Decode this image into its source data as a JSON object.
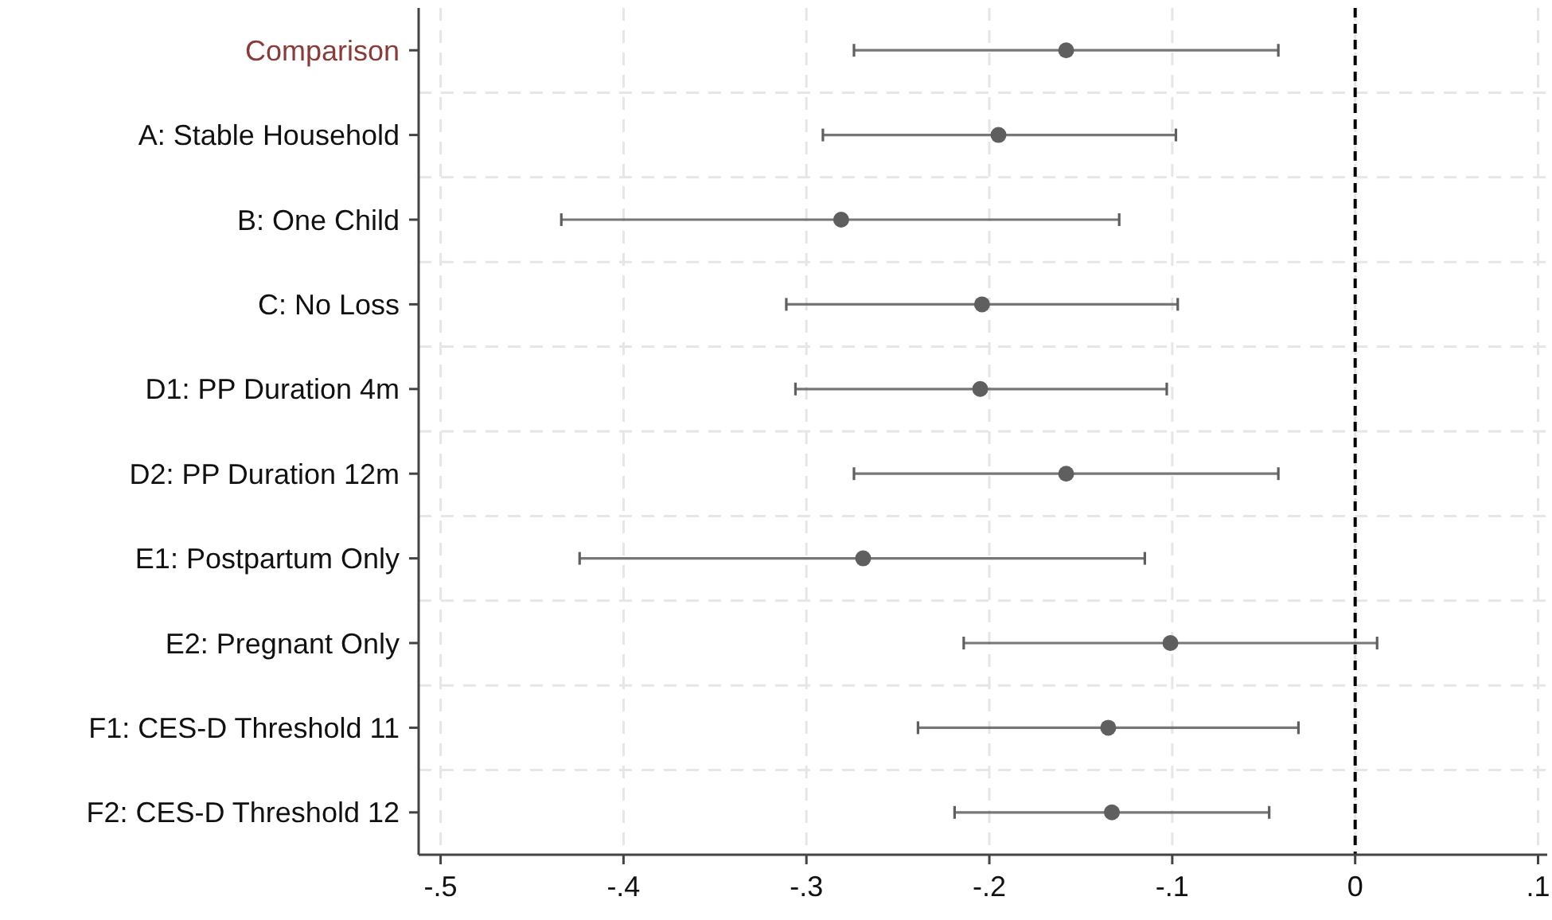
{
  "chart_data": {
    "type": "scatter",
    "orientation": "horizontal",
    "categories": [
      "Comparison",
      "A: Stable Household",
      "B: One Child",
      "C: No Loss",
      "D1: PP Duration 4m",
      "D2: PP Duration 12m",
      "E1: Postpartum Only",
      "E2: Pregnant Only",
      "F1: CES-D Threshold 11",
      "F2: CES-D Threshold 12"
    ],
    "series": [
      {
        "color": "#5f5f5f",
        "values": [
          -0.158,
          -0.195,
          -0.281,
          -0.204,
          -0.205,
          -0.158,
          -0.269,
          -0.101,
          -0.135,
          -0.133
        ],
        "errors": [
          [
            -0.274,
            -0.042
          ],
          [
            -0.291,
            -0.098
          ],
          [
            -0.434,
            -0.129
          ],
          [
            -0.311,
            -0.097
          ],
          [
            -0.306,
            -0.103
          ],
          [
            -0.274,
            -0.042
          ],
          [
            -0.424,
            -0.115
          ],
          [
            -0.214,
            0.012
          ],
          [
            -0.239,
            -0.031
          ],
          [
            -0.219,
            -0.047
          ]
        ]
      }
    ],
    "xlim": [
      -0.512,
      0.105
    ],
    "xticks": [
      {
        "value": -0.5,
        "label": "-.5"
      },
      {
        "value": -0.4,
        "label": "-.4"
      },
      {
        "value": -0.3,
        "label": "-.3"
      },
      {
        "value": -0.2,
        "label": "-.2"
      },
      {
        "value": -0.1,
        "label": "-.1"
      },
      0,
      {
        "value": 0.1,
        "label": ".1"
      }
    ],
    "ref_lines": [
      {
        "axis": "x",
        "value": 0,
        "color": "#000000",
        "line_style": "dashed"
      }
    ],
    "grid": true,
    "marker": "circle"
  }
}
